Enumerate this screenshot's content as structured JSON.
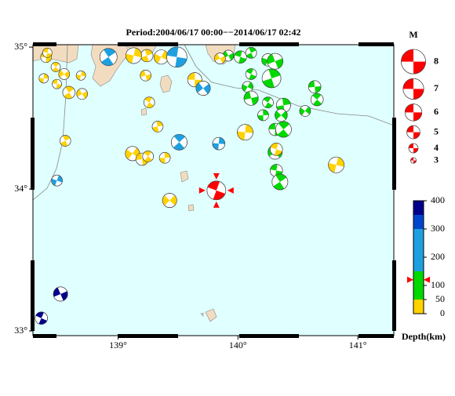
{
  "title": "Period:2004/06/17 00:00−−2014/06/17 02:42",
  "map": {
    "xlim": [
      138.29,
      141.3
    ],
    "ylim": [
      32.967,
      35.017
    ],
    "xticks": [
      {
        "value": 139,
        "label": "139°"
      },
      {
        "value": 140,
        "label": "140°"
      },
      {
        "value": 141,
        "label": "141°"
      }
    ],
    "yticks": [
      {
        "value": 33,
        "label": "33°"
      },
      {
        "value": 34,
        "label": "34°"
      },
      {
        "value": 35,
        "label": "35°"
      }
    ]
  },
  "magnitude_legend": {
    "title": "M",
    "color": "#ff0000",
    "values": [
      8,
      7,
      6,
      5,
      4,
      3
    ]
  },
  "depth_scale": {
    "label": "Depth(km)",
    "lim": [
      0,
      400
    ],
    "ticks": [
      0,
      50,
      100,
      200,
      300,
      400
    ],
    "bands": [
      {
        "from": 0,
        "to": 50,
        "color": "#ffd200"
      },
      {
        "from": 50,
        "to": 150,
        "color": "#00d800"
      },
      {
        "from": 150,
        "to": 300,
        "color": "#1ea0e0"
      },
      {
        "from": 300,
        "to": 350,
        "color": "#0046cc"
      },
      {
        "from": 350,
        "to": 400,
        "color": "#00008b"
      }
    ]
  },
  "events": [
    {
      "lon": 138.4,
      "lat": 34.93,
      "mag": 4.4,
      "depth": 20
    },
    {
      "lon": 138.48,
      "lat": 34.86,
      "mag": 4.0,
      "depth": 20
    },
    {
      "lon": 138.38,
      "lat": 34.78,
      "mag": 4.0,
      "depth": 20
    },
    {
      "lon": 138.55,
      "lat": 34.81,
      "mag": 4.4,
      "depth": 20
    },
    {
      "lon": 138.49,
      "lat": 34.74,
      "mag": 4.0,
      "depth": 20
    },
    {
      "lon": 138.59,
      "lat": 34.68,
      "mag": 4.8,
      "depth": 20
    },
    {
      "lon": 138.69,
      "lat": 34.8,
      "mag": 4.0,
      "depth": 20
    },
    {
      "lon": 138.7,
      "lat": 34.67,
      "mag": 4.4,
      "depth": 20
    },
    {
      "lon": 138.41,
      "lat": 34.96,
      "mag": 4.0,
      "depth": 20
    },
    {
      "lon": 138.56,
      "lat": 34.34,
      "mag": 4.4,
      "depth": 20
    },
    {
      "lon": 138.49,
      "lat": 34.06,
      "mag": 4.4,
      "depth": 200
    },
    {
      "lon": 138.52,
      "lat": 33.26,
      "mag": 5.3,
      "depth": 380
    },
    {
      "lon": 138.36,
      "lat": 33.09,
      "mag": 4.8,
      "depth": 380
    },
    {
      "lon": 139.24,
      "lat": 34.94,
      "mag": 4.8,
      "depth": 20
    },
    {
      "lon": 139.36,
      "lat": 34.93,
      "mag": 5.3,
      "depth": 20
    },
    {
      "lon": 139.23,
      "lat": 34.8,
      "mag": 4.4,
      "depth": 20
    },
    {
      "lon": 139.26,
      "lat": 34.61,
      "mag": 4.4,
      "depth": 20
    },
    {
      "lon": 139.33,
      "lat": 34.44,
      "mag": 4.4,
      "depth": 20
    },
    {
      "lon": 139.12,
      "lat": 34.25,
      "mag": 5.3,
      "depth": 20
    },
    {
      "lon": 139.2,
      "lat": 34.21,
      "mag": 4.8,
      "depth": 20
    },
    {
      "lon": 139.25,
      "lat": 34.23,
      "mag": 4.4,
      "depth": 20
    },
    {
      "lon": 139.39,
      "lat": 34.22,
      "mag": 4.4,
      "depth": 20
    },
    {
      "lon": 139.43,
      "lat": 33.92,
      "mag": 5.3,
      "depth": 20
    },
    {
      "lon": 139.64,
      "lat": 34.77,
      "mag": 5.3,
      "depth": 20
    },
    {
      "lon": 139.51,
      "lat": 34.33,
      "mag": 5.7,
      "depth": 200
    },
    {
      "lon": 139.84,
      "lat": 34.32,
      "mag": 4.8,
      "depth": 200
    },
    {
      "lon": 139.71,
      "lat": 34.71,
      "mag": 5.3,
      "depth": 200
    },
    {
      "lon": 139.49,
      "lat": 34.93,
      "mag": 6.9,
      "depth": 200
    },
    {
      "lon": 138.92,
      "lat": 34.93,
      "mag": 6.1,
      "depth": 200
    },
    {
      "lon": 139.13,
      "lat": 34.94,
      "mag": 5.7,
      "depth": 20
    },
    {
      "lon": 139.92,
      "lat": 34.94,
      "mag": 4.4,
      "depth": 80
    },
    {
      "lon": 140.02,
      "lat": 34.93,
      "mag": 4.8,
      "depth": 80
    },
    {
      "lon": 140.11,
      "lat": 34.96,
      "mag": 4.4,
      "depth": 80
    },
    {
      "lon": 140.25,
      "lat": 34.91,
      "mag": 4.8,
      "depth": 80
    },
    {
      "lon": 140.31,
      "lat": 34.9,
      "mag": 5.7,
      "depth": 80
    },
    {
      "lon": 140.11,
      "lat": 34.81,
      "mag": 4.4,
      "depth": 80
    },
    {
      "lon": 140.28,
      "lat": 34.78,
      "mag": 6.5,
      "depth": 80
    },
    {
      "lon": 140.08,
      "lat": 34.72,
      "mag": 4.4,
      "depth": 80
    },
    {
      "lon": 140.11,
      "lat": 34.64,
      "mag": 5.3,
      "depth": 80
    },
    {
      "lon": 140.25,
      "lat": 34.61,
      "mag": 4.4,
      "depth": 80
    },
    {
      "lon": 140.38,
      "lat": 34.59,
      "mag": 5.3,
      "depth": 80
    },
    {
      "lon": 140.56,
      "lat": 34.55,
      "mag": 4.4,
      "depth": 80
    },
    {
      "lon": 140.64,
      "lat": 34.72,
      "mag": 4.8,
      "depth": 80
    },
    {
      "lon": 140.66,
      "lat": 34.63,
      "mag": 4.8,
      "depth": 80
    },
    {
      "lon": 140.21,
      "lat": 34.52,
      "mag": 4.4,
      "depth": 80
    },
    {
      "lon": 140.36,
      "lat": 34.52,
      "mag": 4.8,
      "depth": 80
    },
    {
      "lon": 140.31,
      "lat": 34.42,
      "mag": 4.8,
      "depth": 80
    },
    {
      "lon": 140.38,
      "lat": 34.42,
      "mag": 5.7,
      "depth": 80
    },
    {
      "lon": 140.06,
      "lat": 34.4,
      "mag": 5.7,
      "depth": 20
    },
    {
      "lon": 140.31,
      "lat": 34.26,
      "mag": 5.3,
      "depth": 80
    },
    {
      "lon": 140.32,
      "lat": 34.13,
      "mag": 4.8,
      "depth": 80
    },
    {
      "lon": 140.35,
      "lat": 34.05,
      "mag": 5.7,
      "depth": 80
    },
    {
      "lon": 140.82,
      "lat": 34.17,
      "mag": 5.7,
      "depth": 20
    },
    {
      "lon": 139.85,
      "lat": 34.92,
      "mag": 4.4,
      "depth": 20
    },
    {
      "lon": 140.32,
      "lat": 34.28,
      "mag": 4.8,
      "depth": 20
    }
  ],
  "latest": {
    "lon": 139.82,
    "lat": 33.99,
    "mag": 6.5,
    "depth": 120,
    "color": "#ff0000"
  }
}
